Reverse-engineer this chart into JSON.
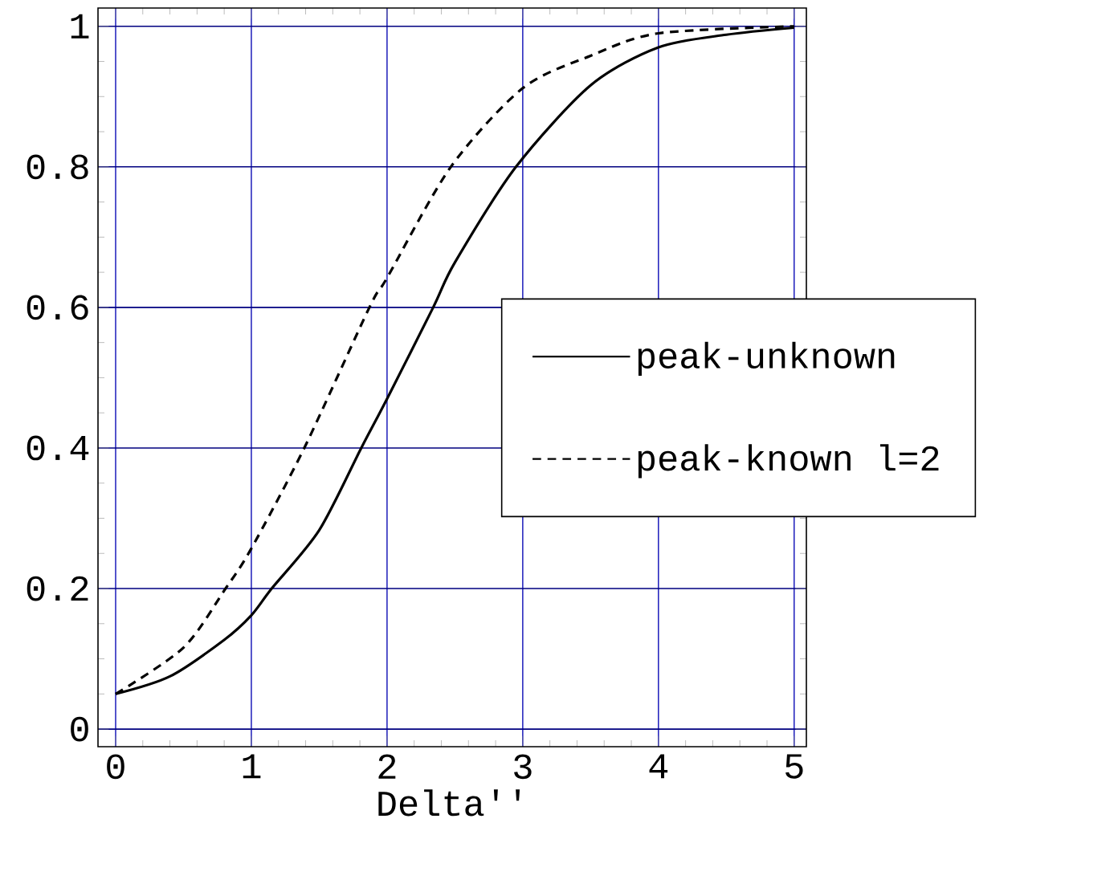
{
  "chart_data": {
    "type": "line",
    "xlabel": "Delta''",
    "xlim": [
      -0.13,
      5.09
    ],
    "ylim": [
      -0.025,
      1.026
    ],
    "xticks": [
      0,
      1,
      2,
      3,
      4,
      5
    ],
    "yticks": [
      0,
      0.2,
      0.4,
      0.6,
      0.8,
      1
    ],
    "grid": true,
    "legend": "right",
    "series": [
      {
        "name": "peak-unknown",
        "color": "#000000",
        "line_style": "solid",
        "x": [
          0,
          0.4,
          0.8,
          1,
          1.15,
          1.5,
          1.81,
          2,
          2.34,
          2.5,
          2.95,
          3.5,
          4,
          4.5,
          5
        ],
        "values": [
          0.05,
          0.075,
          0.127,
          0.162,
          0.2,
          0.283,
          0.4,
          0.47,
          0.6,
          0.664,
          0.8,
          0.916,
          0.97,
          0.988,
          0.998
        ]
      },
      {
        "name": "peak-known l=2",
        "color": "#000000",
        "line_style": "dashed",
        "x": [
          0,
          0.5,
          0.81,
          1,
          1.39,
          1.87,
          2,
          2.47,
          3,
          3.5,
          4,
          5
        ],
        "values": [
          0.05,
          0.116,
          0.2,
          0.257,
          0.4,
          0.6,
          0.642,
          0.8,
          0.912,
          0.958,
          0.99,
          1.0
        ]
      }
    ]
  }
}
